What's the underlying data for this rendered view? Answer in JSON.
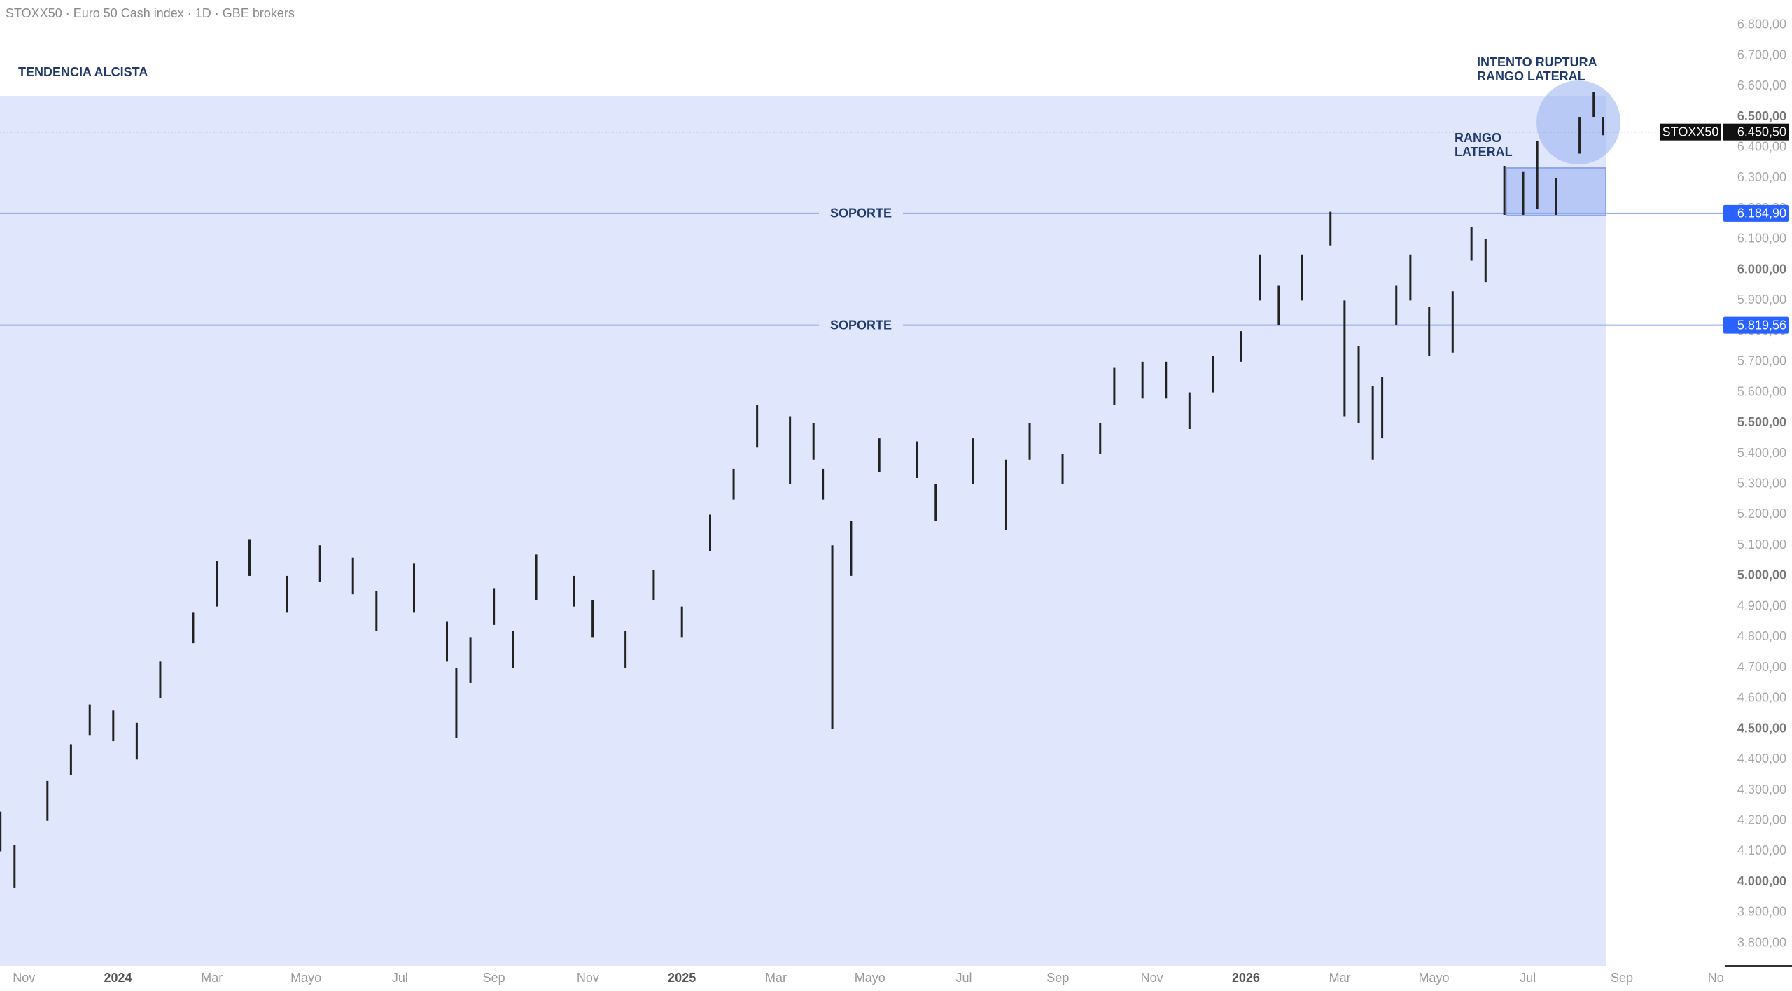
{
  "chart_data": {
    "type": "range-bar",
    "title": "STOXX50 · Euro 50 Cash index · 1D · GBE brokers",
    "annotations": [
      {
        "lines": [
          "TENDENCIA ALCISTA"
        ]
      },
      {
        "lines": [
          "INTENTO RUPTURA",
          "RANGO LATERAL"
        ]
      },
      {
        "lines": [
          "RANGO",
          "LATERAL"
        ]
      }
    ],
    "levels": [
      {
        "name": "SOPORTE",
        "value": 6184.9,
        "label": "6.184,90"
      },
      {
        "name": "SOPORTE",
        "value": 5819.56,
        "label": "5.819,56"
      }
    ],
    "last": {
      "name": "STOXX50",
      "value": 6450.5,
      "label": "6.450,50"
    },
    "series": [
      {
        "name": "STOXX50",
        "color": "#222222",
        "x": [
          -0.5,
          -0.2,
          0.5,
          1.0,
          1.4,
          1.9,
          2.4,
          2.9,
          3.6,
          4.1,
          4.8,
          5.6,
          6.3,
          7.0,
          7.5,
          8.3,
          9.0,
          9.2,
          9.5,
          10.0,
          10.4,
          10.9,
          11.7,
          12.1,
          12.8,
          13.4,
          14.0,
          14.6,
          15.1,
          15.6,
          16.3,
          16.8,
          17.0,
          17.2,
          17.6,
          18.2,
          19.0,
          19.4,
          20.2,
          20.9,
          21.4,
          22.1,
          22.9,
          23.2,
          23.8,
          24.3,
          24.8,
          25.3,
          25.9,
          26.3,
          26.7,
          27.2,
          27.8,
          28.1,
          28.4,
          28.7,
          28.9,
          29.2,
          29.5,
          29.9,
          30.4,
          30.8,
          31.1,
          31.5,
          31.9,
          32.2,
          32.6,
          33.1,
          33.4,
          33.6
        ],
        "low": [
          4100,
          3980,
          4200,
          4350,
          4480,
          4460,
          4400,
          4600,
          4780,
          4900,
          5000,
          4880,
          4980,
          4940,
          4820,
          4880,
          4720,
          4470,
          4650,
          4840,
          4700,
          4920,
          4900,
          4800,
          4700,
          4920,
          4800,
          5080,
          5250,
          5420,
          5300,
          5380,
          5250,
          4500,
          5000,
          5340,
          5320,
          5180,
          5300,
          5150,
          5380,
          5300,
          5400,
          5560,
          5580,
          5580,
          5480,
          5600,
          5700,
          5900,
          5820,
          5900,
          6080,
          5520,
          5500,
          5380,
          5450,
          5820,
          5900,
          5720,
          5730,
          6030,
          5960,
          6180,
          6180,
          6200,
          6180,
          6380,
          6500,
          6440
        ],
        "high": [
          4230,
          4120,
          4330,
          4450,
          4580,
          4560,
          4520,
          4720,
          4880,
          5050,
          5120,
          5000,
          5100,
          5060,
          4950,
          5040,
          4850,
          4700,
          4800,
          4960,
          4820,
          5070,
          5000,
          4920,
          4820,
          5020,
          4900,
          5200,
          5350,
          5560,
          5520,
          5500,
          5350,
          5100,
          5180,
          5450,
          5440,
          5300,
          5450,
          5380,
          5500,
          5400,
          5500,
          5680,
          5700,
          5700,
          5600,
          5720,
          5800,
          6050,
          5950,
          6050,
          6190,
          5900,
          5750,
          5620,
          5650,
          5950,
          6050,
          5880,
          5930,
          6140,
          6100,
          6340,
          6320,
          6420,
          6300,
          6500,
          6580,
          6500
        ]
      }
    ],
    "xlim": [
      -0.51,
      36.1
    ],
    "xticks": [
      {
        "value": 0,
        "label": "Nov"
      },
      {
        "value": 2,
        "label": "2024"
      },
      {
        "value": 4,
        "label": "Mar"
      },
      {
        "value": 6,
        "label": "Mayo"
      },
      {
        "value": 8,
        "label": "Jul"
      },
      {
        "value": 10,
        "label": "Sep"
      },
      {
        "value": 12,
        "label": "Nov"
      },
      {
        "value": 14,
        "label": "2025"
      },
      {
        "value": 16,
        "label": "Mar"
      },
      {
        "value": 18,
        "label": "Mayo"
      },
      {
        "value": 20,
        "label": "Jul"
      },
      {
        "value": 22,
        "label": "Sep"
      },
      {
        "value": 24,
        "label": "Nov"
      },
      {
        "value": 26,
        "label": "2026"
      },
      {
        "value": 28,
        "label": "Mar"
      },
      {
        "value": 30,
        "label": "Mayo"
      },
      {
        "value": 32,
        "label": "Jul"
      },
      {
        "value": 34,
        "label": "Sep"
      },
      {
        "value": 36,
        "label": "No"
      }
    ],
    "ylim": [
      3726,
      6882
    ],
    "yticks": [
      {
        "value": 3800,
        "label": "3.800,00"
      },
      {
        "value": 3900,
        "label": "3.900,00"
      },
      {
        "value": 4000,
        "label": "4.000,00"
      },
      {
        "value": 4100,
        "label": "4.100,00"
      },
      {
        "value": 4200,
        "label": "4.200,00"
      },
      {
        "value": 4300,
        "label": "4.300,00"
      },
      {
        "value": 4400,
        "label": "4.400,00"
      },
      {
        "value": 4500,
        "label": "4.500,00"
      },
      {
        "value": 4600,
        "label": "4.600,00"
      },
      {
        "value": 4700,
        "label": "4.700,00"
      },
      {
        "value": 4800,
        "label": "4.800,00"
      },
      {
        "value": 4900,
        "label": "4.900,00"
      },
      {
        "value": 5000,
        "label": "5.000,00"
      },
      {
        "value": 5100,
        "label": "5.100,00"
      },
      {
        "value": 5200,
        "label": "5.200,00"
      },
      {
        "value": 5300,
        "label": "5.300,00"
      },
      {
        "value": 5400,
        "label": "5.400,00"
      },
      {
        "value": 5500,
        "label": "5.500,00"
      },
      {
        "value": 5600,
        "label": "5.600,00"
      },
      {
        "value": 5700,
        "label": "5.700,00"
      },
      {
        "value": 5800,
        "label": "5.800,00"
      },
      {
        "value": 5900,
        "label": "5.900,00"
      },
      {
        "value": 6000,
        "label": "6.000,00"
      },
      {
        "value": 6100,
        "label": "6.100,00"
      },
      {
        "value": 6200,
        "label": "6.200,00"
      },
      {
        "value": 6300,
        "label": "6.300,00"
      },
      {
        "value": 6400,
        "label": "6.400,00"
      },
      {
        "value": 6500,
        "label": "6.500,00"
      },
      {
        "value": 6600,
        "label": "6.600,00"
      },
      {
        "value": 6700,
        "label": "6.700,00"
      },
      {
        "value": 6800,
        "label": "6.800,00"
      }
    ],
    "grid": false
  }
}
